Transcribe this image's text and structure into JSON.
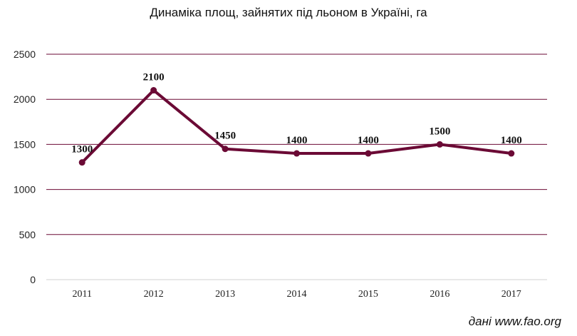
{
  "chart_data": {
    "type": "line",
    "title": "Динаміка площ, зайнятих під льоном в Україні, га",
    "x": [
      "2011",
      "2012",
      "2013",
      "2014",
      "2015",
      "2016",
      "2017"
    ],
    "series": [
      {
        "values": [
          1300,
          2100,
          1450,
          1400,
          1400,
          1500,
          1400
        ]
      }
    ],
    "data_labels": [
      "1300",
      "2100",
      "1450",
      "1400",
      "1400",
      "1500",
      "1400"
    ],
    "y_ticks": [
      "0",
      "500",
      "1000",
      "1500",
      "2000",
      "2500"
    ],
    "ylim": [
      0,
      2500
    ],
    "grid": true,
    "legend": "none",
    "line_color": "#6b0a35",
    "grid_color": "#6b0a35"
  },
  "footer": {
    "source": "дані www.fao.org"
  }
}
